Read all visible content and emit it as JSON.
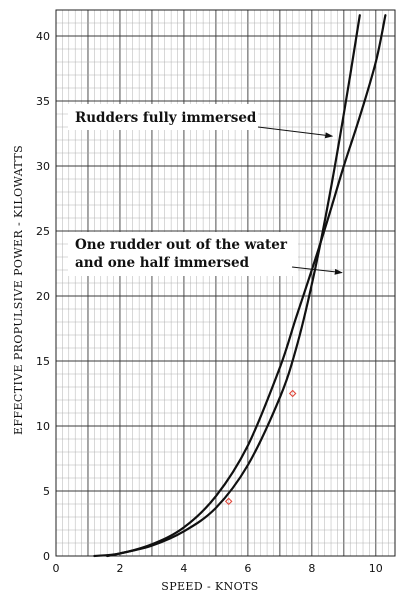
{
  "chart_data": {
    "type": "line",
    "title": "",
    "xlabel": "SPEED  -   KNOTS",
    "ylabel": "EFFECTIVE PROPULSIVE POWER  -  KILOWATTS",
    "xlim": [
      0,
      10.6
    ],
    "ylim": [
      0,
      42
    ],
    "x_ticks": [
      0,
      2,
      4,
      6,
      8,
      10
    ],
    "y_ticks": [
      0,
      5,
      10,
      15,
      20,
      25,
      30,
      35,
      40
    ],
    "grid": true,
    "legend": "none",
    "series": [
      {
        "x": [
          1.6,
          2,
          3,
          4,
          5,
          6,
          7,
          7.5,
          8,
          8.5,
          9,
          9.5
        ],
        "y": [
          0,
          0.2,
          0.8,
          1.9,
          3.7,
          7.0,
          12.2,
          15.9,
          20.9,
          27.0,
          34.0,
          41.6
        ]
      },
      {
        "x": [
          1.2,
          2,
          3,
          4,
          5,
          6,
          7,
          7.5,
          8,
          8.5,
          9,
          9.5,
          10,
          10.3
        ],
        "y": [
          0,
          0.2,
          0.9,
          2.2,
          4.6,
          8.5,
          14.5,
          18.3,
          22.0,
          25.9,
          30.0,
          33.8,
          38.0,
          41.6
        ]
      }
    ],
    "markers": [
      {
        "x": 5.4,
        "y": 4.2
      },
      {
        "x": 7.4,
        "y": 12.5
      }
    ],
    "annotations": [
      {
        "lines": [
          "Rudders fully immersed"
        ],
        "target_x": 8.7,
        "target_y": 32.3
      },
      {
        "lines": [
          "One rudder out of the water",
          "and one half immersed"
        ],
        "target_x": 9.0,
        "target_y": 21.8
      }
    ],
    "colors": {
      "curve": "#111111",
      "grid_major": "#3a3a3a",
      "grid_minor": "#a9a9a9",
      "marker": "#e0483c"
    }
  }
}
